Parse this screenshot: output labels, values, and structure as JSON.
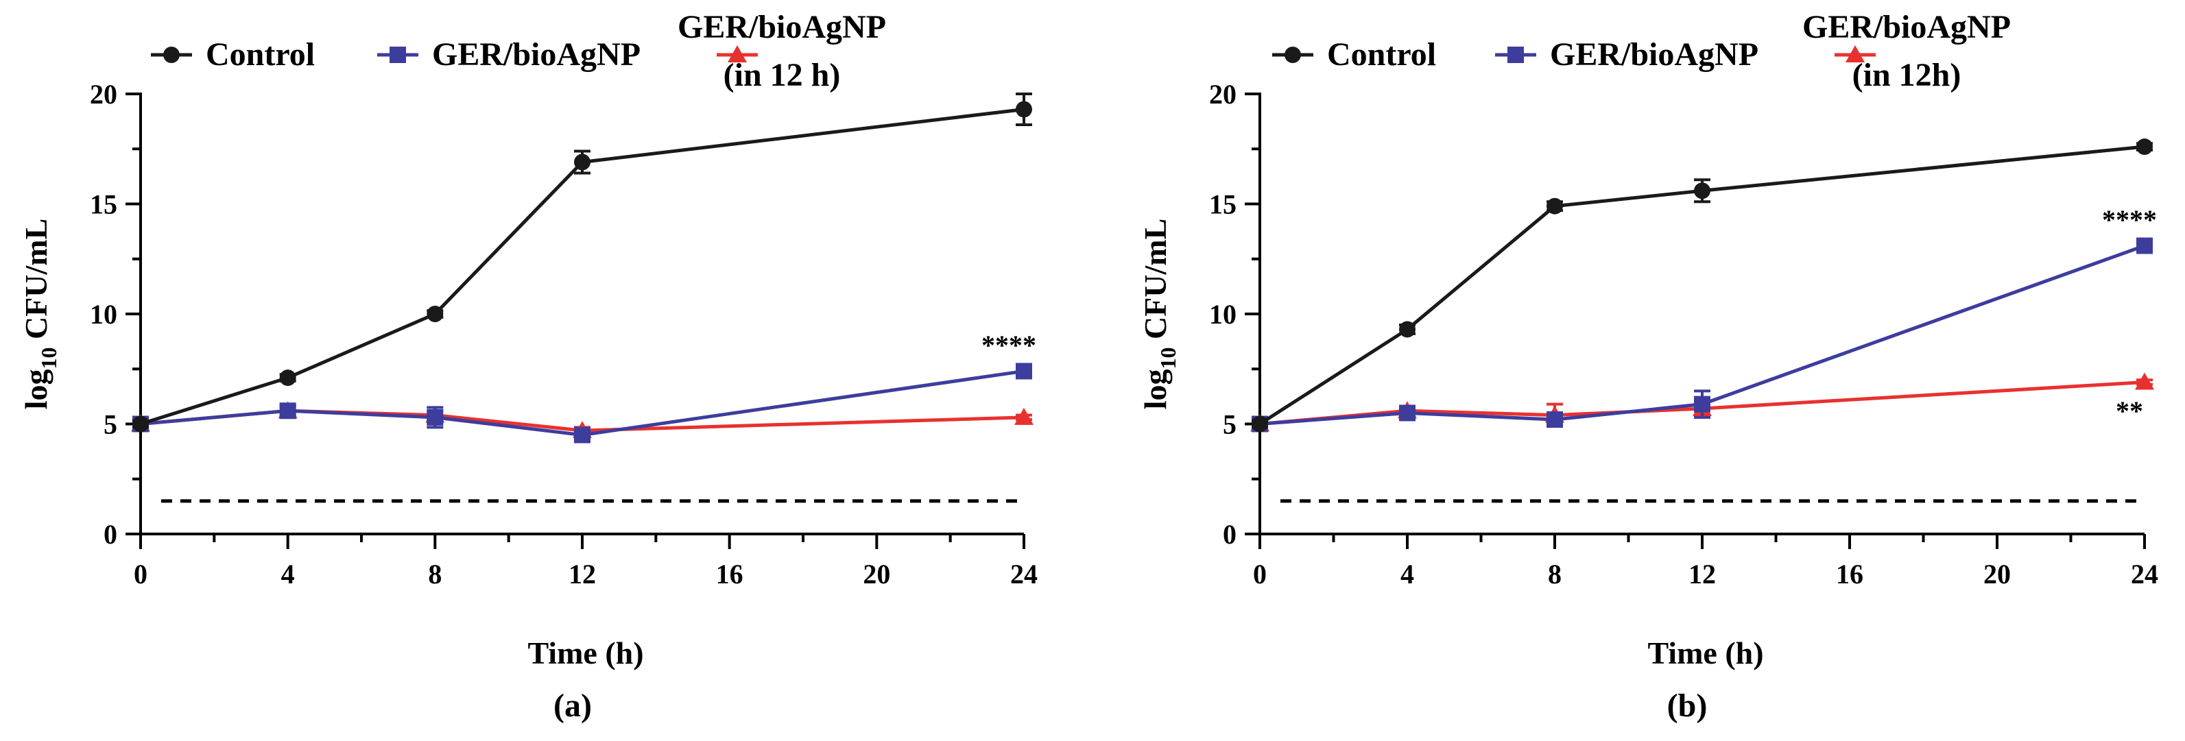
{
  "chart_data": [
    {
      "type": "line",
      "panel_label": "(a)",
      "xlabel": "Time (h)",
      "ylabel_main": "log",
      "ylabel_sub": "10",
      "ylabel_rest": " CFU/mL",
      "x_ticks": [
        0,
        4,
        8,
        12,
        16,
        20,
        24
      ],
      "y_ticks": [
        0,
        5,
        10,
        15,
        20
      ],
      "xlim": [
        0,
        24
      ],
      "ylim": [
        0,
        20
      ],
      "detection_limit": 1.5,
      "legend": [
        {
          "label": "Control"
        },
        {
          "label": "GER/bioAgNP"
        },
        {
          "label_line1": "GER/bioAgNP",
          "label_line2": "(in 12 h)"
        }
      ],
      "series": [
        {
          "name": "Control",
          "color": "#1a1a1a",
          "marker": "circle",
          "x": [
            0,
            4,
            8,
            12,
            24
          ],
          "y": [
            5.0,
            7.1,
            10.0,
            16.9,
            19.3
          ],
          "err": [
            0.15,
            0.15,
            0.15,
            0.5,
            0.7
          ]
        },
        {
          "name": "GER/bioAgNP",
          "color": "#3d3d9e",
          "marker": "square",
          "x": [
            0,
            4,
            8,
            12,
            24
          ],
          "y": [
            5.0,
            5.6,
            5.3,
            4.5,
            7.4
          ],
          "err": [
            0.15,
            0.25,
            0.45,
            0.3,
            0.2
          ]
        },
        {
          "name": "GER/bioAgNP (in 12 h)",
          "color": "#e8312f",
          "marker": "triangle",
          "x": [
            0,
            4,
            8,
            12,
            24
          ],
          "y": [
            5.0,
            5.6,
            5.4,
            4.7,
            5.3
          ],
          "err": [
            0.1,
            0.2,
            0.2,
            0.15,
            0.1
          ]
        }
      ],
      "annotations": [
        {
          "text": "****",
          "x": 24,
          "y": 8.6
        }
      ]
    },
    {
      "type": "line",
      "panel_label": "(b)",
      "xlabel": "Time (h)",
      "ylabel_main": "log",
      "ylabel_sub": "10",
      "ylabel_rest": " CFU/mL",
      "x_ticks": [
        0,
        4,
        8,
        12,
        16,
        20,
        24
      ],
      "y_ticks": [
        0,
        5,
        10,
        15,
        20
      ],
      "xlim": [
        0,
        24
      ],
      "ylim": [
        0,
        20
      ],
      "detection_limit": 1.5,
      "legend": [
        {
          "label": "Control"
        },
        {
          "label": "GER/bioAgNP"
        },
        {
          "label_line1": "GER/bioAgNP",
          "label_line2": "(in 12h)"
        }
      ],
      "series": [
        {
          "name": "Control",
          "color": "#1a1a1a",
          "marker": "circle",
          "x": [
            0,
            4,
            8,
            12,
            24
          ],
          "y": [
            5.0,
            9.3,
            14.9,
            15.6,
            17.6
          ],
          "err": [
            0.15,
            0.2,
            0.2,
            0.5,
            0.15
          ]
        },
        {
          "name": "GER/bioAgNP",
          "color": "#3d3d9e",
          "marker": "square",
          "x": [
            0,
            4,
            8,
            12,
            24
          ],
          "y": [
            5.0,
            5.5,
            5.2,
            5.9,
            13.1
          ],
          "err": [
            0.15,
            0.3,
            0.3,
            0.6,
            0.2
          ]
        },
        {
          "name": "GER/bioAgNP (in 12h)",
          "color": "#e8312f",
          "marker": "triangle",
          "x": [
            0,
            4,
            8,
            12,
            24
          ],
          "y": [
            5.0,
            5.6,
            5.4,
            5.7,
            6.9
          ],
          "err": [
            0.1,
            0.2,
            0.5,
            0.4,
            0.1
          ]
        }
      ],
      "annotations": [
        {
          "text": "****",
          "x": 24,
          "y": 14.3
        },
        {
          "text": "**",
          "x": 24,
          "y": 5.6
        }
      ]
    }
  ]
}
